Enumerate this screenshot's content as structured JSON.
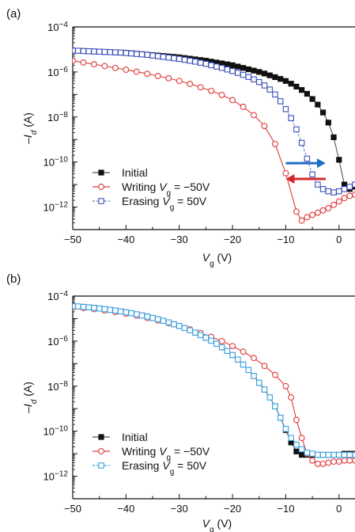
{
  "chart_data": [
    {
      "panel": "(a)",
      "type": "scatter",
      "xlabel": {
        "main": "V",
        "sub": "g",
        "unit": " (V)"
      },
      "ylabel": {
        "pre": "–I",
        "sub": "d",
        "unit": " (A)"
      },
      "xlim": [
        -50,
        3
      ],
      "ylim": [
        -13,
        -4
      ],
      "yscale": "log",
      "xticks": [
        -50,
        -40,
        -30,
        -20,
        -10,
        0
      ],
      "xtick_labels": [
        "−50",
        "−40",
        "−30",
        "−20",
        "−10",
        "0"
      ],
      "yticks": [
        -4,
        -6,
        -8,
        -10,
        -12
      ],
      "ytick_labels": [
        {
          "base": "10",
          "exp": "−4"
        },
        {
          "base": "10",
          "exp": "−6"
        },
        {
          "base": "10",
          "exp": "−8"
        },
        {
          "base": "10",
          "exp": "−10"
        },
        {
          "base": "10",
          "exp": "−12"
        }
      ],
      "legend_position": "bottom-left",
      "arrows": [
        {
          "color": "#1f6fc1",
          "direction": "right",
          "x_from": -10,
          "x_to": -2.5,
          "log_y": -10.05
        },
        {
          "color": "#d62828",
          "direction": "left",
          "x_from": -2.5,
          "x_to": -10,
          "log_y": -10.75
        }
      ],
      "series": [
        {
          "name": {
            "pre": "Initial",
            "var": "",
            "sub": "",
            "post": ""
          },
          "color": "#111111",
          "line_color": "#555555",
          "marker": "square-filled",
          "dashed": false,
          "x": [
            -50,
            -49,
            -48,
            -47,
            -46,
            -45,
            -44,
            -43,
            -42,
            -41,
            -40,
            -39,
            -38,
            -37,
            -36,
            -35,
            -34,
            -33,
            -32,
            -31,
            -30,
            -29,
            -28,
            -27,
            -26,
            -25,
            -24,
            -23,
            -22,
            -21,
            -20,
            -19,
            -18,
            -17,
            -16,
            -15,
            -14,
            -13,
            -12,
            -11,
            -10,
            -9,
            -8,
            -7,
            -6,
            -5,
            -4,
            -3,
            -2,
            -1,
            0,
            1,
            2,
            3
          ],
          "log_y": [
            -5.05,
            -5.06,
            -5.07,
            -5.08,
            -5.09,
            -5.1,
            -5.11,
            -5.12,
            -5.13,
            -5.14,
            -5.15,
            -5.17,
            -5.19,
            -5.21,
            -5.23,
            -5.25,
            -5.27,
            -5.29,
            -5.31,
            -5.33,
            -5.35,
            -5.38,
            -5.41,
            -5.44,
            -5.47,
            -5.5,
            -5.54,
            -5.58,
            -5.62,
            -5.66,
            -5.7,
            -5.76,
            -5.82,
            -5.88,
            -5.94,
            -6.0,
            -6.07,
            -6.15,
            -6.23,
            -6.31,
            -6.4,
            -6.52,
            -6.65,
            -6.8,
            -6.97,
            -7.2,
            -7.45,
            -7.8,
            -8.25,
            -8.9,
            -9.9,
            -11.0,
            -11.2,
            -11.1
          ]
        },
        {
          "name": {
            "pre": "Writing ",
            "var": "V",
            "sub": "g",
            "post": " = −50V"
          },
          "color": "#e03a3a",
          "line_color": "#e03a3a",
          "marker": "circle-open",
          "dashed": false,
          "x": [
            -50,
            -48,
            -46,
            -44,
            -42,
            -40,
            -38,
            -36,
            -34,
            -32,
            -30,
            -28,
            -26,
            -24,
            -22,
            -20,
            -18,
            -16,
            -14,
            -12,
            -10,
            -8,
            -7,
            -6,
            -5,
            -4,
            -3,
            -2,
            -1,
            0,
            1,
            2,
            3
          ],
          "log_y": [
            -5.5,
            -5.58,
            -5.66,
            -5.74,
            -5.82,
            -5.9,
            -5.99,
            -6.08,
            -6.18,
            -6.28,
            -6.4,
            -6.53,
            -6.68,
            -6.84,
            -7.02,
            -7.25,
            -7.55,
            -7.92,
            -8.4,
            -9.2,
            -10.5,
            -12.2,
            -12.6,
            -12.45,
            -12.35,
            -12.25,
            -12.15,
            -12.05,
            -11.9,
            -11.75,
            -11.6,
            -11.5,
            -11.45
          ]
        },
        {
          "name": {
            "pre": "Erasing ",
            "var": "V",
            "sub": "g",
            "post": " = 50V"
          },
          "color": "#3b4fb8",
          "line_color": "#6a7ad0",
          "marker": "square-open",
          "dashed": true,
          "x": [
            -50,
            -49,
            -48,
            -47,
            -46,
            -45,
            -44,
            -43,
            -42,
            -41,
            -40,
            -39,
            -38,
            -37,
            -36,
            -35,
            -34,
            -33,
            -32,
            -31,
            -30,
            -29,
            -28,
            -27,
            -26,
            -25,
            -24,
            -23,
            -22,
            -21,
            -20,
            -19,
            -18,
            -17,
            -16,
            -15,
            -14,
            -13,
            -12,
            -11,
            -10,
            -9,
            -8,
            -7,
            -6,
            -5,
            -4,
            -3,
            -2,
            -1,
            0,
            1,
            2,
            3
          ],
          "log_y": [
            -5.05,
            -5.06,
            -5.07,
            -5.08,
            -5.09,
            -5.1,
            -5.11,
            -5.12,
            -5.13,
            -5.14,
            -5.16,
            -5.18,
            -5.2,
            -5.22,
            -5.24,
            -5.27,
            -5.3,
            -5.33,
            -5.36,
            -5.39,
            -5.42,
            -5.46,
            -5.5,
            -5.54,
            -5.59,
            -5.64,
            -5.7,
            -5.76,
            -5.82,
            -5.89,
            -5.96,
            -6.04,
            -6.13,
            -6.22,
            -6.33,
            -6.45,
            -6.6,
            -6.78,
            -7.0,
            -7.3,
            -7.65,
            -8.05,
            -8.55,
            -9.15,
            -9.85,
            -10.55,
            -11.0,
            -11.2,
            -11.3,
            -11.35,
            -11.3,
            -11.2,
            -11.1,
            -11.0
          ]
        }
      ]
    },
    {
      "panel": "(b)",
      "type": "scatter",
      "xlabel": {
        "main": "V",
        "sub": "g",
        "unit": " (V)"
      },
      "ylabel": {
        "pre": "–I",
        "sub": "d",
        "unit": " (A)"
      },
      "xlim": [
        -50,
        3
      ],
      "ylim": [
        -13,
        -4
      ],
      "yscale": "log",
      "xticks": [
        -50,
        -40,
        -30,
        -20,
        -10,
        0
      ],
      "xtick_labels": [
        "−50",
        "−40",
        "−30",
        "−20",
        "−10",
        "0"
      ],
      "yticks": [
        -4,
        -6,
        -8,
        -10,
        -12
      ],
      "ytick_labels": [
        {
          "base": "10",
          "exp": "−4"
        },
        {
          "base": "10",
          "exp": "−6"
        },
        {
          "base": "10",
          "exp": "−8"
        },
        {
          "base": "10",
          "exp": "−10"
        },
        {
          "base": "10",
          "exp": "−12"
        }
      ],
      "legend_position": "bottom-left",
      "arrows": [],
      "series": [
        {
          "name": {
            "pre": "Initial",
            "var": "",
            "sub": "",
            "post": ""
          },
          "color": "#111111",
          "line_color": "#555555",
          "marker": "square-filled",
          "dashed": false,
          "x": [
            -50,
            -49,
            -48,
            -47,
            -46,
            -45,
            -44,
            -43,
            -42,
            -41,
            -40,
            -39,
            -38,
            -37,
            -36,
            -35,
            -34,
            -33,
            -32,
            -31,
            -30,
            -29,
            -28,
            -27,
            -26,
            -25,
            -24,
            -23,
            -22,
            -21,
            -20,
            -19,
            -18,
            -17,
            -16,
            -15,
            -14,
            -13,
            -12,
            -11,
            -10,
            -9,
            -8,
            -7,
            -6,
            -5,
            -4,
            -3,
            -2,
            -1,
            0,
            1,
            2,
            3
          ],
          "log_y": [
            -4.45,
            -4.46,
            -4.48,
            -4.5,
            -4.52,
            -4.55,
            -4.58,
            -4.61,
            -4.64,
            -4.68,
            -4.72,
            -4.76,
            -4.81,
            -4.86,
            -4.91,
            -4.97,
            -5.03,
            -5.1,
            -5.17,
            -5.25,
            -5.33,
            -5.42,
            -5.52,
            -5.62,
            -5.73,
            -5.85,
            -5.98,
            -6.12,
            -6.27,
            -6.44,
            -6.62,
            -6.82,
            -7.04,
            -7.28,
            -7.55,
            -7.85,
            -8.15,
            -8.5,
            -8.9,
            -9.4,
            -9.95,
            -10.5,
            -10.9,
            -11.05,
            -11.05,
            -11.05,
            -11.05,
            -11.05,
            -11.05,
            -11.05,
            -11.05,
            -11.0,
            -11.0,
            -11.0
          ]
        },
        {
          "name": {
            "pre": "Writing ",
            "var": "V",
            "sub": "g",
            "post": " = −50V"
          },
          "color": "#e03a3a",
          "line_color": "#e03a3a",
          "marker": "circle-open",
          "dashed": false,
          "x": [
            -50,
            -48,
            -46,
            -44,
            -42,
            -40,
            -38,
            -36,
            -34,
            -32,
            -30,
            -28,
            -26,
            -24,
            -22,
            -20,
            -18,
            -16,
            -14,
            -12,
            -10,
            -9,
            -8,
            -7,
            -6,
            -5,
            -4,
            -3,
            -2,
            -1,
            0,
            1,
            2,
            3
          ],
          "log_y": [
            -4.5,
            -4.53,
            -4.58,
            -4.64,
            -4.71,
            -4.78,
            -4.87,
            -4.97,
            -5.08,
            -5.2,
            -5.33,
            -5.48,
            -5.64,
            -5.81,
            -6.0,
            -6.22,
            -6.47,
            -6.75,
            -7.1,
            -7.5,
            -8.0,
            -8.5,
            -9.5,
            -10.3,
            -11.0,
            -11.3,
            -11.45,
            -11.45,
            -11.4,
            -11.35,
            -11.35,
            -11.3,
            -11.3,
            -11.3
          ]
        },
        {
          "name": {
            "pre": "Erasing ",
            "var": "V",
            "sub": "g",
            "post": " = 50V"
          },
          "color": "#3aa0e0",
          "line_color": "#3aa0e0",
          "marker": "square-open",
          "dashed": true,
          "x": [
            -50,
            -49,
            -48,
            -47,
            -46,
            -45,
            -44,
            -43,
            -42,
            -41,
            -40,
            -39,
            -38,
            -37,
            -36,
            -35,
            -34,
            -33,
            -32,
            -31,
            -30,
            -29,
            -28,
            -27,
            -26,
            -25,
            -24,
            -23,
            -22,
            -21,
            -20,
            -19,
            -18,
            -17,
            -16,
            -15,
            -14,
            -13,
            -12,
            -11,
            -10,
            -9,
            -8,
            -7,
            -6,
            -5,
            -4,
            -3,
            -2,
            -1,
            0,
            1,
            2,
            3
          ],
          "log_y": [
            -4.45,
            -4.46,
            -4.48,
            -4.5,
            -4.52,
            -4.55,
            -4.58,
            -4.61,
            -4.64,
            -4.68,
            -4.72,
            -4.76,
            -4.81,
            -4.86,
            -4.91,
            -4.97,
            -5.03,
            -5.1,
            -5.17,
            -5.25,
            -5.33,
            -5.42,
            -5.52,
            -5.62,
            -5.73,
            -5.85,
            -5.98,
            -6.12,
            -6.27,
            -6.44,
            -6.62,
            -6.82,
            -7.04,
            -7.28,
            -7.55,
            -7.85,
            -8.15,
            -8.5,
            -8.9,
            -9.4,
            -9.9,
            -10.3,
            -10.6,
            -10.8,
            -10.95,
            -11.0,
            -11.05,
            -11.05,
            -11.05,
            -11.05,
            -11.05,
            -11.05,
            -11.05,
            -11.05
          ]
        }
      ]
    }
  ]
}
